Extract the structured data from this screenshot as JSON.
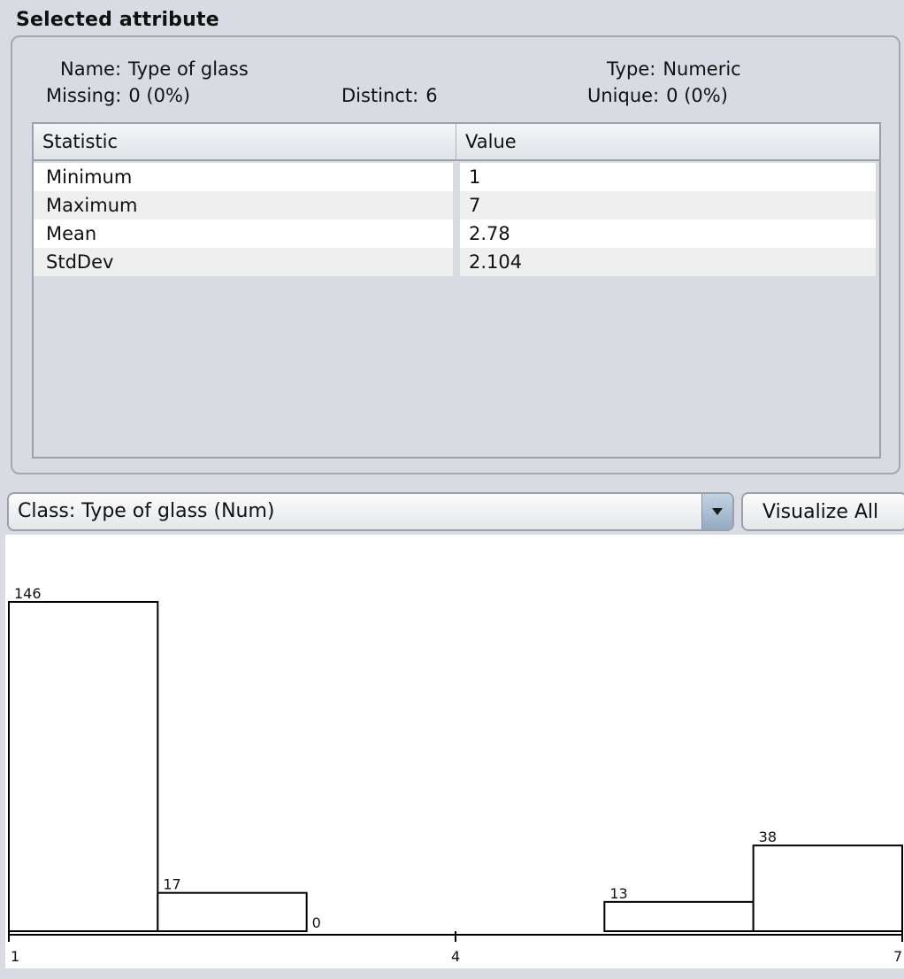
{
  "panel": {
    "title": "Selected attribute"
  },
  "attribute": {
    "name_label": "Name:",
    "name_value": "Type of glass",
    "type_label": "Type:",
    "type_value": "Numeric",
    "missing_label": "Missing:",
    "missing_value": "0 (0%)",
    "distinct_label": "Distinct:",
    "distinct_value": "6",
    "unique_label": "Unique:",
    "unique_value": "0 (0%)"
  },
  "table": {
    "headers": [
      "Statistic",
      "Value"
    ],
    "rows": [
      {
        "statistic": "Minimum",
        "value": "1"
      },
      {
        "statistic": "Maximum",
        "value": "7"
      },
      {
        "statistic": "Mean",
        "value": "2.78"
      },
      {
        "statistic": "StdDev",
        "value": "2.104"
      }
    ]
  },
  "controls": {
    "class_select_value": "Class: Type of glass (Num)",
    "dropdown_icon": "chevron-down-icon",
    "visualize_all_label": "Visualize All"
  },
  "chart_data": {
    "type": "bar",
    "title": "",
    "xlabel": "",
    "ylabel": "",
    "xlim": [
      1,
      7
    ],
    "ylim": [
      0,
      146
    ],
    "bins": [
      {
        "start": 1,
        "end": 2,
        "count": 146
      },
      {
        "start": 2,
        "end": 3,
        "count": 17
      },
      {
        "start": 3,
        "end": 4,
        "count": 0
      },
      {
        "start": 4,
        "end": 5,
        "count": 0
      },
      {
        "start": 5,
        "end": 6,
        "count": 13
      },
      {
        "start": 6,
        "end": 7,
        "count": 38
      }
    ],
    "shown_labels": [
      "146",
      "17",
      "0",
      "13",
      "38"
    ],
    "x_ticks": [
      1,
      4,
      7
    ],
    "x_tick_labels": [
      "1",
      "4",
      "7"
    ],
    "grid": false
  }
}
